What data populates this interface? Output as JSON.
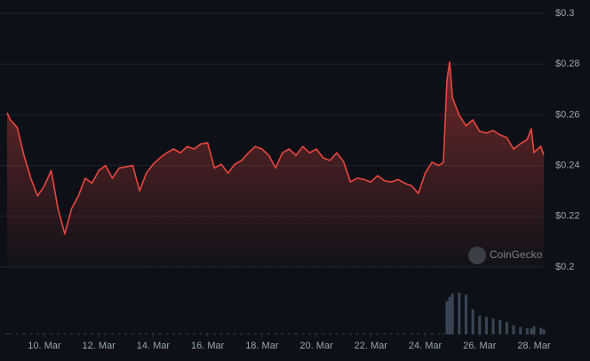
{
  "chart_data": {
    "type": "line",
    "x": [
      8.63,
      8.75,
      9.0,
      9.25,
      9.5,
      9.75,
      10.0,
      10.25,
      10.5,
      10.75,
      11.0,
      11.25,
      11.5,
      11.75,
      12.0,
      12.25,
      12.5,
      12.75,
      13.0,
      13.25,
      13.5,
      13.75,
      14.0,
      14.25,
      14.5,
      14.75,
      15.0,
      15.25,
      15.5,
      15.75,
      16.0,
      16.25,
      16.5,
      16.75,
      17.0,
      17.25,
      17.5,
      17.75,
      18.0,
      18.25,
      18.5,
      18.75,
      19.0,
      19.25,
      19.5,
      19.75,
      20.0,
      20.25,
      20.5,
      20.75,
      21.0,
      21.25,
      21.5,
      21.75,
      22.0,
      22.25,
      22.5,
      22.75,
      23.0,
      23.25,
      23.5,
      23.75,
      24.0,
      24.25,
      24.5,
      24.67,
      24.8,
      24.9,
      25.0,
      25.25,
      25.5,
      25.75,
      26.0,
      26.25,
      26.5,
      26.75,
      27.0,
      27.25,
      27.5,
      27.75,
      27.9,
      28.0,
      28.25,
      28.36
    ],
    "series": [
      {
        "color": "#e8463f",
        "values": [
          0.2608,
          0.258,
          0.255,
          0.244,
          0.235,
          0.228,
          0.232,
          0.238,
          0.223,
          0.213,
          0.223,
          0.228,
          0.235,
          0.233,
          0.238,
          0.24,
          0.235,
          0.239,
          0.2395,
          0.24,
          0.23,
          0.237,
          0.2405,
          0.243,
          0.245,
          0.2465,
          0.245,
          0.2475,
          0.2465,
          0.2485,
          0.249,
          0.239,
          0.2405,
          0.237,
          0.2405,
          0.242,
          0.245,
          0.2475,
          0.2465,
          0.244,
          0.239,
          0.245,
          0.2465,
          0.244,
          0.2475,
          0.245,
          0.2465,
          0.243,
          0.242,
          0.245,
          0.2415,
          0.2335,
          0.235,
          0.2345,
          0.2335,
          0.236,
          0.234,
          0.2335,
          0.2345,
          0.233,
          0.232,
          0.229,
          0.237,
          0.2413,
          0.24,
          0.2413,
          0.2738,
          0.2808,
          0.2668,
          0.2598,
          0.2556,
          0.258,
          0.2535,
          0.2528,
          0.2538,
          0.2521,
          0.251,
          0.2465,
          0.2486,
          0.2503,
          0.2545,
          0.2451,
          0.2476,
          0.2441
        ]
      }
    ],
    "volume": {
      "color": "#3a4555",
      "values": [
        2,
        2,
        2,
        2,
        2,
        2,
        2,
        2,
        2,
        2,
        2,
        2,
        2,
        2,
        2,
        2,
        2,
        2,
        2,
        2,
        2,
        2,
        2,
        2,
        2,
        2,
        2,
        2,
        2,
        2,
        2,
        2,
        2,
        2,
        2,
        2,
        2,
        2,
        2,
        2,
        2,
        2,
        2,
        2,
        2,
        2,
        2,
        2,
        2,
        2,
        2,
        2,
        2,
        2,
        2,
        2,
        2,
        2,
        2,
        2,
        2,
        2,
        2,
        2,
        2,
        2,
        80,
        90,
        98,
        100,
        95,
        60,
        45,
        42,
        38,
        35,
        30,
        22,
        18,
        15,
        14,
        20,
        16,
        12
      ]
    },
    "volume_ylim": [
      0,
      100
    ],
    "xlim": [
      8.63,
      28.36
    ],
    "xticks": [
      {
        "value": 10,
        "label": "10. Mar"
      },
      {
        "value": 12,
        "label": "12. Mar"
      },
      {
        "value": 14,
        "label": "14. Mar"
      },
      {
        "value": 16,
        "label": "16. Mar"
      },
      {
        "value": 18,
        "label": "18. Mar"
      },
      {
        "value": 20,
        "label": "20. Mar"
      },
      {
        "value": 22,
        "label": "22. Mar"
      },
      {
        "value": 24,
        "label": "24. Mar"
      },
      {
        "value": 26,
        "label": "26. Mar"
      },
      {
        "value": 28,
        "label": "28. Mar"
      }
    ],
    "ylim": [
      0.2,
      0.3
    ],
    "yticks": [
      {
        "value": 0.2,
        "label": "$0.2"
      },
      {
        "value": 0.22,
        "label": "$0.22"
      },
      {
        "value": 0.24,
        "label": "$0.24"
      },
      {
        "value": 0.26,
        "label": "$0.26"
      },
      {
        "value": 0.28,
        "label": "$0.28"
      },
      {
        "value": 0.3,
        "label": "$0.3"
      }
    ],
    "grid": true,
    "watermark": "CoinGecko"
  }
}
